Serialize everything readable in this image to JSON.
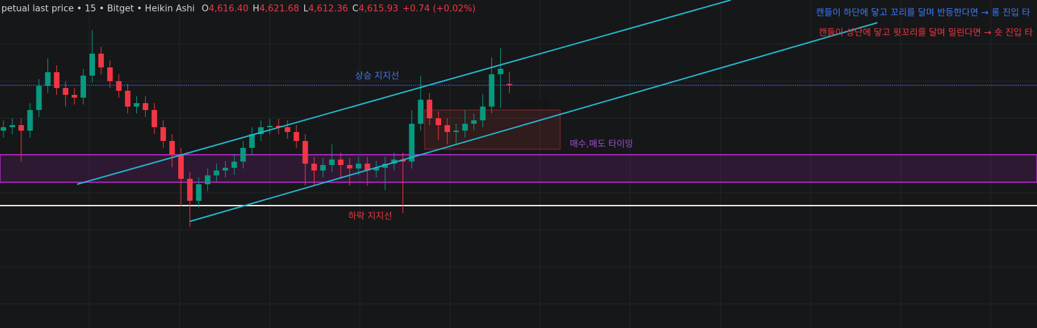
{
  "chart_data": {
    "type": "candlestick",
    "title": "petual last price • 15 • Bitget • Heikin Ashi",
    "ohlc_legend": [
      {
        "key": "O",
        "text": "4,616.40"
      },
      {
        "key": "H",
        "text": "4,621.68"
      },
      {
        "key": "L",
        "text": "4,612.36"
      },
      {
        "key": "C",
        "text": "4,615.93"
      }
    ],
    "change": "+0.74 (+0.02%)",
    "annotations": {
      "long": "캔들이 하단에 닿고 꼬리를 달며 반등한다면 → 롱 진입 타",
      "short": "캔들이 상단에 닿고 윗꼬리를 달며 밀린다면 → 숏 진입 타",
      "upper_support": "상승 지지선",
      "lower_support": "하락 지지선",
      "battle": "세력싸움",
      "timing": "매수,매도 타이밍"
    },
    "up_color": "#089981",
    "down_color": "#f23645",
    "ylim": [
      4509.9,
      4653
    ],
    "open": [
      4596,
      4597.5,
      4598.4,
      4596,
      4605,
      4615.5,
      4621.5,
      4614.6,
      4611.6,
      4610.4,
      4620,
      4629.6,
      4623.6,
      4617.6,
      4613.4,
      4606.5,
      4608,
      4605,
      4597.5,
      4591.5,
      4585.5,
      4575,
      4565.4,
      4572.6,
      4576.5,
      4578.6,
      4579.8,
      4582.5,
      4588.5,
      4594.5,
      4597.5,
      4598.1,
      4597.5,
      4595.4,
      4591.5,
      4581.6,
      4578.6,
      4581,
      4583.4,
      4581,
      4579.5,
      4581.6,
      4578.6,
      4579.8,
      4581.6,
      4583.4,
      4582.5,
      4599,
      4609.5,
      4601.4,
      4598.4,
      4595.4,
      4596,
      4599,
      4600.5,
      4606.5,
      4620.6,
      4616.4
    ],
    "high": [
      4600.5,
      4601.4,
      4601.4,
      4608,
      4618.5,
      4627.5,
      4624.5,
      4617.6,
      4614.6,
      4623,
      4640,
      4632.6,
      4626.6,
      4620.6,
      4616.4,
      4611,
      4611,
      4608,
      4600.5,
      4594.5,
      4588.5,
      4578,
      4575.6,
      4579.5,
      4581.6,
      4582.8,
      4585.5,
      4591.5,
      4597.5,
      4600.5,
      4601.1,
      4601.1,
      4600.5,
      4598.4,
      4594.5,
      4584.6,
      4584,
      4590,
      4586.4,
      4584,
      4584.6,
      4584.6,
      4582.8,
      4584.6,
      4586.4,
      4586.4,
      4605,
      4620,
      4612.5,
      4604.4,
      4601.4,
      4599,
      4605,
      4603.5,
      4612,
      4628,
      4632,
      4621.68
    ],
    "low": [
      4593,
      4594.5,
      4582.5,
      4593,
      4602,
      4612.5,
      4611.6,
      4606.5,
      4607.4,
      4607.4,
      4617,
      4620.6,
      4614.6,
      4610.4,
      4603.5,
      4603.5,
      4602,
      4594.5,
      4588.5,
      4580,
      4563,
      4554,
      4562.4,
      4569.6,
      4573.5,
      4575.6,
      4576.8,
      4579.5,
      4585.5,
      4591.5,
      4594.5,
      4594.5,
      4592.4,
      4588.5,
      4572,
      4572,
      4575.6,
      4578,
      4575,
      4572,
      4576.5,
      4572,
      4575.6,
      4570,
      4578.6,
      4560,
      4579.5,
      4596,
      4598.4,
      4592,
      4590,
      4590,
      4593,
      4596,
      4597.5,
      4603.5,
      4606,
      4612.36
    ],
    "close": [
      4597.5,
      4598.4,
      4596,
      4605,
      4615.5,
      4621.5,
      4614.6,
      4611.6,
      4610.4,
      4620,
      4629.6,
      4623.6,
      4617.6,
      4613.4,
      4606.5,
      4608,
      4605,
      4597.5,
      4591.5,
      4585.5,
      4575,
      4565.4,
      4572.6,
      4576.5,
      4578.6,
      4579.8,
      4582.5,
      4588.5,
      4594.5,
      4597.5,
      4598.1,
      4597.5,
      4595.4,
      4591.5,
      4581.6,
      4578.6,
      4581,
      4583.4,
      4581,
      4579.5,
      4581.6,
      4578.6,
      4579.8,
      4581.6,
      4583.4,
      4582.5,
      4599,
      4609.5,
      4601.4,
      4598.4,
      4595.4,
      4596,
      4599,
      4600.5,
      4606.5,
      4620.6,
      4623,
      4615.93
    ]
  }
}
